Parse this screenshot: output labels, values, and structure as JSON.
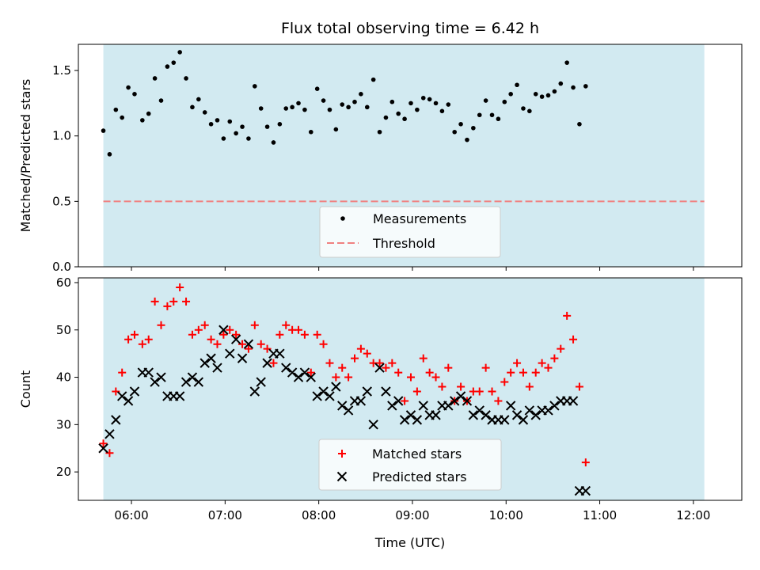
{
  "chart_data": {
    "title": "Flux total observing time = 6.42 h",
    "xlabel": "Time (UTC)",
    "observing_window": [
      "05:42",
      "12:07"
    ],
    "shade_color": "#add8e6",
    "x_ticks": [
      "06:00",
      "07:00",
      "08:00",
      "09:00",
      "10:00",
      "11:00",
      "12:00"
    ],
    "xlim": [
      "05:26",
      "12:31"
    ],
    "panels": [
      {
        "type": "scatter",
        "ylabel": "Matched/Predicted stars",
        "ylim": [
          0,
          1.7
        ],
        "y_ticks": [
          "0.0",
          "0.5",
          "1.0",
          "1.5"
        ],
        "threshold": {
          "name": "Threshold",
          "value": 0.5,
          "color": "#f08080",
          "style": "dashed"
        },
        "legend_position": "bottom-center",
        "series": [
          {
            "name": "Measurements",
            "color": "#000000",
            "marker": "dot",
            "points": [
              [
                "05:42",
                1.04
              ],
              [
                "05:46",
                0.86
              ],
              [
                "05:50",
                1.2
              ],
              [
                "05:54",
                1.14
              ],
              [
                "05:58",
                1.37
              ],
              [
                "06:02",
                1.32
              ],
              [
                "06:07",
                1.12
              ],
              [
                "06:11",
                1.17
              ],
              [
                "06:15",
                1.44
              ],
              [
                "06:19",
                1.27
              ],
              [
                "06:23",
                1.53
              ],
              [
                "06:27",
                1.56
              ],
              [
                "06:31",
                1.64
              ],
              [
                "06:35",
                1.44
              ],
              [
                "06:39",
                1.22
              ],
              [
                "06:43",
                1.28
              ],
              [
                "06:47",
                1.18
              ],
              [
                "06:51",
                1.09
              ],
              [
                "06:55",
                1.12
              ],
              [
                "06:59",
                0.98
              ],
              [
                "07:03",
                1.11
              ],
              [
                "07:07",
                1.02
              ],
              [
                "07:11",
                1.07
              ],
              [
                "07:15",
                0.98
              ],
              [
                "07:19",
                1.38
              ],
              [
                "07:23",
                1.21
              ],
              [
                "07:27",
                1.07
              ],
              [
                "07:31",
                0.95
              ],
              [
                "07:35",
                1.09
              ],
              [
                "07:39",
                1.21
              ],
              [
                "07:43",
                1.22
              ],
              [
                "07:47",
                1.25
              ],
              [
                "07:51",
                1.2
              ],
              [
                "07:55",
                1.03
              ],
              [
                "07:59",
                1.36
              ],
              [
                "08:03",
                1.27
              ],
              [
                "08:07",
                1.2
              ],
              [
                "08:11",
                1.05
              ],
              [
                "08:15",
                1.24
              ],
              [
                "08:19",
                1.22
              ],
              [
                "08:23",
                1.26
              ],
              [
                "08:27",
                1.32
              ],
              [
                "08:31",
                1.22
              ],
              [
                "08:35",
                1.43
              ],
              [
                "08:39",
                1.03
              ],
              [
                "08:43",
                1.14
              ],
              [
                "08:47",
                1.26
              ],
              [
                "08:51",
                1.17
              ],
              [
                "08:55",
                1.13
              ],
              [
                "08:59",
                1.25
              ],
              [
                "09:03",
                1.2
              ],
              [
                "09:07",
                1.29
              ],
              [
                "09:11",
                1.28
              ],
              [
                "09:15",
                1.25
              ],
              [
                "09:19",
                1.19
              ],
              [
                "09:23",
                1.24
              ],
              [
                "09:27",
                1.03
              ],
              [
                "09:31",
                1.09
              ],
              [
                "09:35",
                0.97
              ],
              [
                "09:39",
                1.06
              ],
              [
                "09:43",
                1.16
              ],
              [
                "09:47",
                1.27
              ],
              [
                "09:51",
                1.16
              ],
              [
                "09:55",
                1.13
              ],
              [
                "09:59",
                1.26
              ],
              [
                "10:03",
                1.32
              ],
              [
                "10:07",
                1.39
              ],
              [
                "10:11",
                1.21
              ],
              [
                "10:15",
                1.19
              ],
              [
                "10:19",
                1.32
              ],
              [
                "10:23",
                1.3
              ],
              [
                "10:27",
                1.31
              ],
              [
                "10:31",
                1.34
              ],
              [
                "10:35",
                1.4
              ],
              [
                "10:39",
                1.56
              ],
              [
                "10:43",
                1.37
              ],
              [
                "10:47",
                1.09
              ],
              [
                "10:51",
                1.38
              ]
            ]
          }
        ]
      },
      {
        "type": "scatter",
        "ylabel": "Count",
        "ylim": [
          14,
          61
        ],
        "y_ticks": [
          "20",
          "30",
          "40",
          "50",
          "60"
        ],
        "legend_position": "bottom-center",
        "series": [
          {
            "name": "Matched stars",
            "color": "#ff0000",
            "marker": "plus",
            "points": [
              [
                "05:42",
                26
              ],
              [
                "05:46",
                24
              ],
              [
                "05:50",
                37
              ],
              [
                "05:54",
                41
              ],
              [
                "05:58",
                48
              ],
              [
                "06:02",
                49
              ],
              [
                "06:07",
                47
              ],
              [
                "06:11",
                48
              ],
              [
                "06:15",
                56
              ],
              [
                "06:19",
                51
              ],
              [
                "06:23",
                55
              ],
              [
                "06:27",
                56
              ],
              [
                "06:31",
                59
              ],
              [
                "06:35",
                56
              ],
              [
                "06:39",
                49
              ],
              [
                "06:43",
                50
              ],
              [
                "06:47",
                51
              ],
              [
                "06:51",
                48
              ],
              [
                "06:55",
                47
              ],
              [
                "06:59",
                49
              ],
              [
                "07:03",
                50
              ],
              [
                "07:07",
                49
              ],
              [
                "07:11",
                47
              ],
              [
                "07:15",
                46
              ],
              [
                "07:19",
                51
              ],
              [
                "07:23",
                47
              ],
              [
                "07:27",
                46
              ],
              [
                "07:31",
                43
              ],
              [
                "07:35",
                49
              ],
              [
                "07:39",
                51
              ],
              [
                "07:43",
                50
              ],
              [
                "07:47",
                50
              ],
              [
                "07:51",
                49
              ],
              [
                "07:55",
                41
              ],
              [
                "07:59",
                49
              ],
              [
                "08:03",
                47
              ],
              [
                "08:07",
                43
              ],
              [
                "08:11",
                40
              ],
              [
                "08:15",
                42
              ],
              [
                "08:19",
                40
              ],
              [
                "08:23",
                44
              ],
              [
                "08:27",
                46
              ],
              [
                "08:31",
                45
              ],
              [
                "08:35",
                43
              ],
              [
                "08:39",
                43
              ],
              [
                "08:43",
                42
              ],
              [
                "08:47",
                43
              ],
              [
                "08:51",
                41
              ],
              [
                "08:55",
                35
              ],
              [
                "08:59",
                40
              ],
              [
                "09:03",
                37
              ],
              [
                "09:07",
                44
              ],
              [
                "09:11",
                41
              ],
              [
                "09:15",
                40
              ],
              [
                "09:19",
                38
              ],
              [
                "09:23",
                42
              ],
              [
                "09:27",
                35
              ],
              [
                "09:31",
                38
              ],
              [
                "09:35",
                35
              ],
              [
                "09:39",
                37
              ],
              [
                "09:43",
                37
              ],
              [
                "09:47",
                42
              ],
              [
                "09:51",
                37
              ],
              [
                "09:55",
                35
              ],
              [
                "09:59",
                39
              ],
              [
                "10:03",
                41
              ],
              [
                "10:07",
                43
              ],
              [
                "10:11",
                41
              ],
              [
                "10:15",
                38
              ],
              [
                "10:19",
                41
              ],
              [
                "10:23",
                43
              ],
              [
                "10:27",
                42
              ],
              [
                "10:31",
                44
              ],
              [
                "10:35",
                46
              ],
              [
                "10:39",
                53
              ],
              [
                "10:43",
                48
              ],
              [
                "10:47",
                38
              ],
              [
                "10:51",
                22
              ]
            ]
          },
          {
            "name": "Predicted stars",
            "color": "#000000",
            "marker": "x",
            "points": [
              [
                "05:42",
                25
              ],
              [
                "05:46",
                28
              ],
              [
                "05:50",
                31
              ],
              [
                "05:54",
                36
              ],
              [
                "05:58",
                35
              ],
              [
                "06:02",
                37
              ],
              [
                "06:07",
                41
              ],
              [
                "06:11",
                41
              ],
              [
                "06:15",
                39
              ],
              [
                "06:19",
                40
              ],
              [
                "06:23",
                36
              ],
              [
                "06:27",
                36
              ],
              [
                "06:31",
                36
              ],
              [
                "06:35",
                39
              ],
              [
                "06:39",
                40
              ],
              [
                "06:43",
                39
              ],
              [
                "06:47",
                43
              ],
              [
                "06:51",
                44
              ],
              [
                "06:55",
                42
              ],
              [
                "06:59",
                50
              ],
              [
                "07:03",
                45
              ],
              [
                "07:07",
                48
              ],
              [
                "07:11",
                44
              ],
              [
                "07:15",
                47
              ],
              [
                "07:19",
                37
              ],
              [
                "07:23",
                39
              ],
              [
                "07:27",
                43
              ],
              [
                "07:31",
                45
              ],
              [
                "07:35",
                45
              ],
              [
                "07:39",
                42
              ],
              [
                "07:43",
                41
              ],
              [
                "07:47",
                40
              ],
              [
                "07:51",
                41
              ],
              [
                "07:55",
                40
              ],
              [
                "07:59",
                36
              ],
              [
                "08:03",
                37
              ],
              [
                "08:07",
                36
              ],
              [
                "08:11",
                38
              ],
              [
                "08:15",
                34
              ],
              [
                "08:19",
                33
              ],
              [
                "08:23",
                35
              ],
              [
                "08:27",
                35
              ],
              [
                "08:31",
                37
              ],
              [
                "08:35",
                30
              ],
              [
                "08:39",
                42
              ],
              [
                "08:43",
                37
              ],
              [
                "08:47",
                34
              ],
              [
                "08:51",
                35
              ],
              [
                "08:55",
                31
              ],
              [
                "08:59",
                32
              ],
              [
                "09:03",
                31
              ],
              [
                "09:07",
                34
              ],
              [
                "09:11",
                32
              ],
              [
                "09:15",
                32
              ],
              [
                "09:19",
                34
              ],
              [
                "09:23",
                34
              ],
              [
                "09:27",
                35
              ],
              [
                "09:31",
                36
              ],
              [
                "09:35",
                35
              ],
              [
                "09:39",
                32
              ],
              [
                "09:43",
                33
              ],
              [
                "09:47",
                32
              ],
              [
                "09:51",
                31
              ],
              [
                "09:55",
                31
              ],
              [
                "09:59",
                31
              ],
              [
                "10:03",
                34
              ],
              [
                "10:07",
                32
              ],
              [
                "10:11",
                31
              ],
              [
                "10:15",
                33
              ],
              [
                "10:19",
                32
              ],
              [
                "10:23",
                33
              ],
              [
                "10:27",
                33
              ],
              [
                "10:31",
                34
              ],
              [
                "10:35",
                35
              ],
              [
                "10:39",
                35
              ],
              [
                "10:43",
                35
              ],
              [
                "10:47",
                16
              ],
              [
                "10:51",
                16
              ]
            ]
          }
        ]
      }
    ]
  }
}
